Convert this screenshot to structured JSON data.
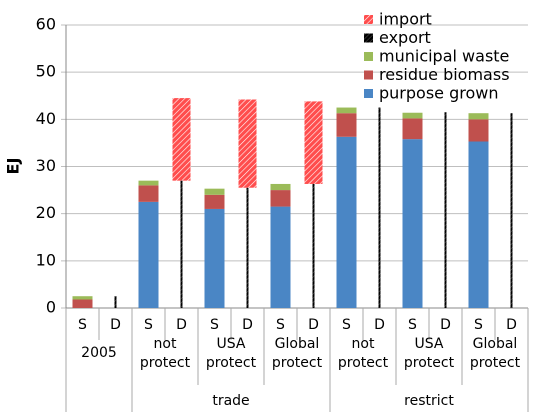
{
  "chart_data": {
    "type": "bar",
    "ylabel": "EJ",
    "ylim": [
      0,
      60
    ],
    "yticks": [
      0,
      10,
      20,
      30,
      40,
      50,
      60
    ],
    "grid": true,
    "legend": "top-right",
    "categories": [
      "S",
      "D",
      "S",
      "D",
      "S",
      "D",
      "S",
      "D",
      "S",
      "D",
      "S",
      "D",
      "S",
      "D"
    ],
    "groups": [
      [
        "2005"
      ],
      [
        "not",
        "protect"
      ],
      [
        "USA",
        "protect"
      ],
      [
        "Global",
        "protect"
      ],
      [
        "not",
        "protect"
      ],
      [
        "USA",
        "protect"
      ],
      [
        "Global",
        "protect"
      ]
    ],
    "supergroups": [
      {
        "label": "trade",
        "from": 1,
        "to": 3
      },
      {
        "label": "restrict",
        "from": 4,
        "to": 6
      }
    ],
    "series": [
      {
        "name": "import",
        "color": "#ff4d4d",
        "hatch": true,
        "stack": "D",
        "values": [
          null,
          0,
          null,
          17.5,
          null,
          18.7,
          null,
          17.5,
          null,
          0,
          null,
          0,
          null,
          0
        ]
      },
      {
        "name": "export",
        "color": "#000000",
        "hatch": true,
        "stack": "D",
        "values": [
          null,
          2.5,
          null,
          27,
          null,
          25.5,
          null,
          26.3,
          null,
          42.5,
          null,
          41.5,
          null,
          41.3
        ]
      },
      {
        "name": "municipal waste",
        "color": "#9bbb59",
        "stack": "S",
        "values": [
          0.7,
          null,
          1,
          null,
          1.3,
          null,
          1.3,
          null,
          1.2,
          null,
          1.2,
          null,
          1.3,
          null
        ]
      },
      {
        "name": "residue biomass",
        "color": "#c0504d",
        "stack": "S",
        "values": [
          1.8,
          null,
          3.5,
          null,
          3,
          null,
          3.5,
          null,
          5,
          null,
          4.4,
          null,
          4.7,
          null
        ]
      },
      {
        "name": "purpose grown",
        "color": "#4a86c5",
        "stack": "S",
        "values": [
          0,
          null,
          22.5,
          null,
          21,
          null,
          21.5,
          null,
          36.3,
          null,
          35.8,
          null,
          35.3,
          null
        ]
      }
    ]
  }
}
